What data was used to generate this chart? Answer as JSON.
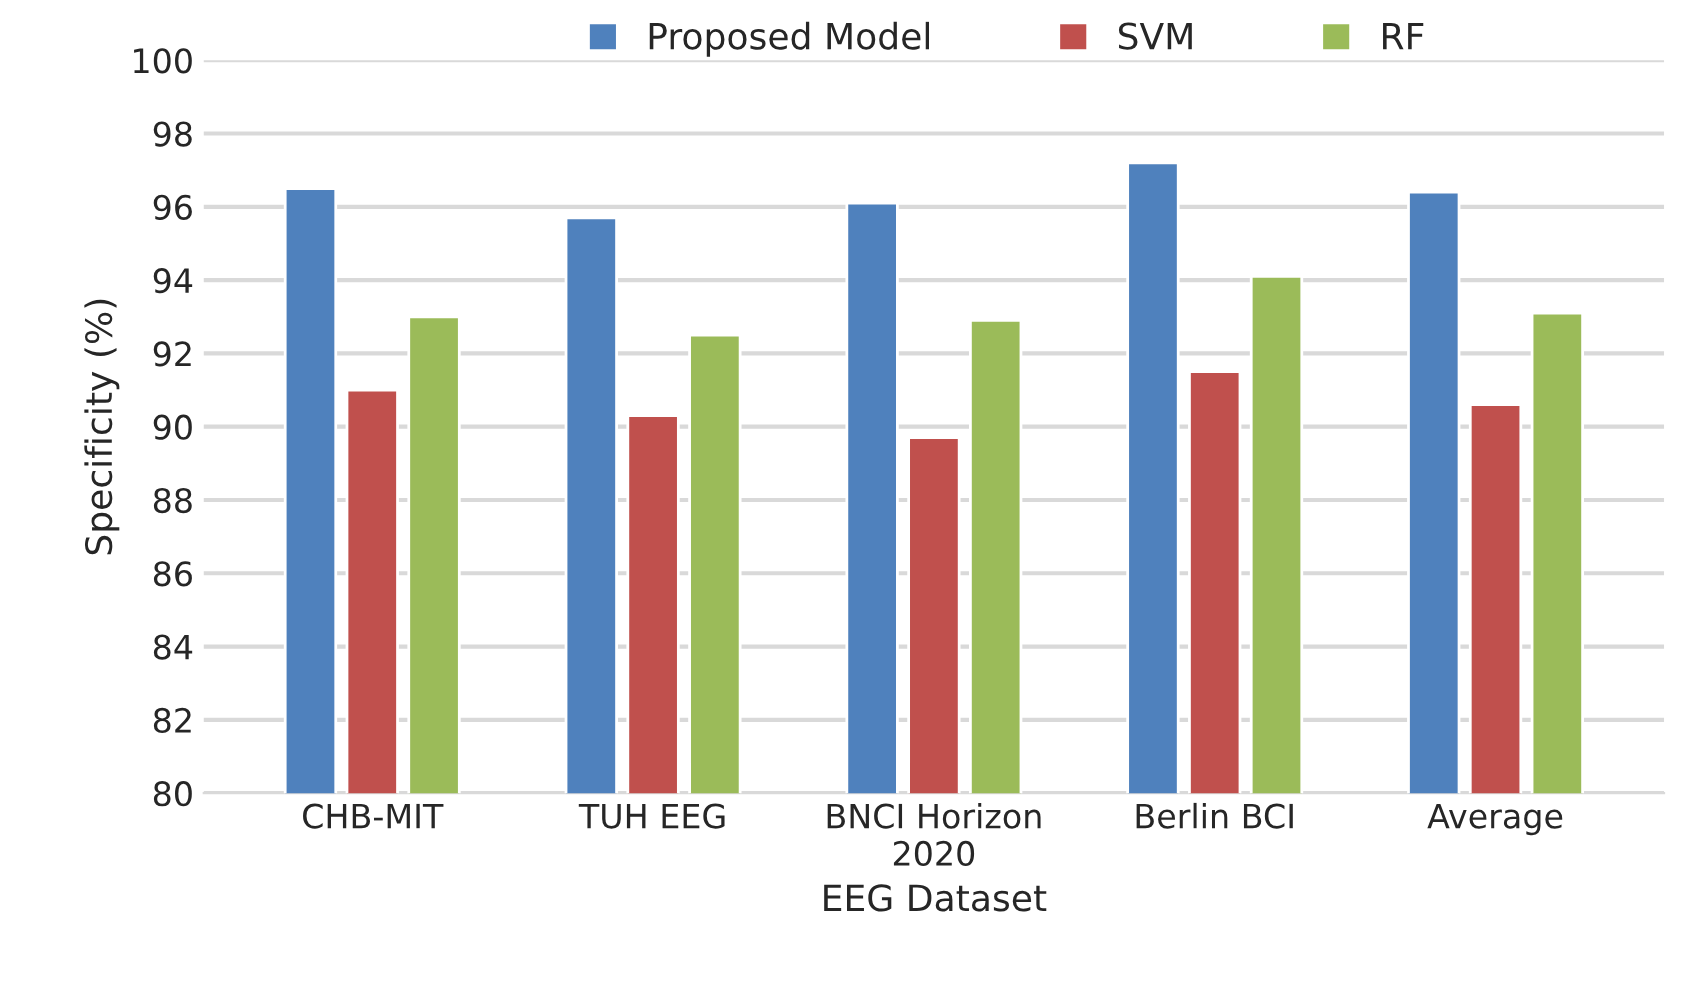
{
  "chart_data": {
    "type": "bar",
    "xlabel": "EEG Dataset",
    "ylabel": "Specificity (%)",
    "categories": [
      "CHB-MIT",
      "TUH EEG",
      "BNCI Horizon\n2020",
      "Berlin BCI",
      "Average"
    ],
    "series": [
      {
        "name": "Proposed Model",
        "color": "#4f81bd",
        "values": [
          96.5,
          95.7,
          96.1,
          97.2,
          96.4
        ]
      },
      {
        "name": "SVM",
        "color": "#c0504d",
        "values": [
          91.0,
          90.3,
          89.7,
          91.5,
          90.6
        ]
      },
      {
        "name": "RF",
        "color": "#9bbb59",
        "values": [
          93.0,
          92.5,
          92.9,
          94.1,
          93.1
        ]
      }
    ],
    "ylim": [
      80,
      100
    ],
    "yticks": [
      80,
      82,
      84,
      86,
      88,
      90,
      92,
      94,
      96,
      98,
      100
    ],
    "grid": "y",
    "legend": "top"
  }
}
